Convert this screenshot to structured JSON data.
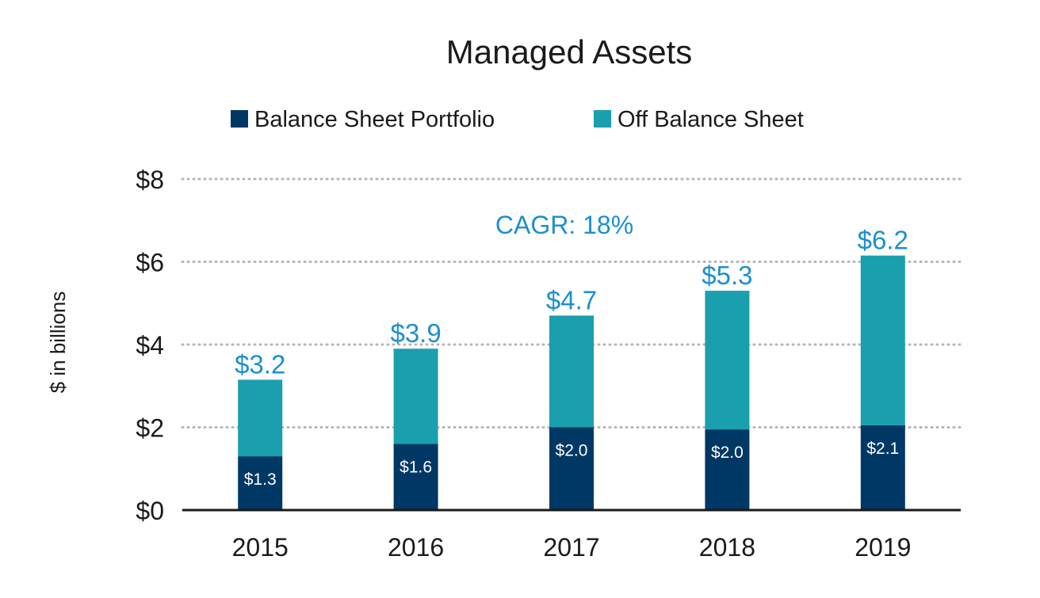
{
  "chart_data": {
    "type": "bar",
    "stacked": true,
    "title": "Managed Assets",
    "xlabel": "",
    "ylabel": "$ in billions",
    "ylim": [
      0,
      8
    ],
    "yticks": [
      0,
      2,
      4,
      6,
      8
    ],
    "ytick_labels": [
      "$0",
      "$2",
      "$4",
      "$6",
      "$8"
    ],
    "grid": true,
    "legend_position": "top",
    "categories": [
      "2015",
      "2016",
      "2017",
      "2018",
      "2019"
    ],
    "series": [
      {
        "name": "Balance Sheet Portfolio",
        "color": "#003865",
        "values": [
          1.3,
          1.6,
          2.0,
          1.95,
          2.05
        ],
        "labels": [
          "$1.3",
          "$1.6",
          "$2.0",
          "$2.0",
          "$2.1"
        ]
      },
      {
        "name": "Off Balance Sheet",
        "color": "#1a9fae",
        "values": [
          1.85,
          2.3,
          2.7,
          3.35,
          4.1
        ]
      }
    ],
    "totals": [
      3.15,
      3.9,
      4.7,
      5.3,
      6.15
    ],
    "total_labels": [
      "$3.2",
      "$3.9",
      "$4.7",
      "$5.3",
      "$6.2"
    ],
    "total_label_color": "#1b8fd0",
    "annotation": "CAGR: 18%"
  }
}
